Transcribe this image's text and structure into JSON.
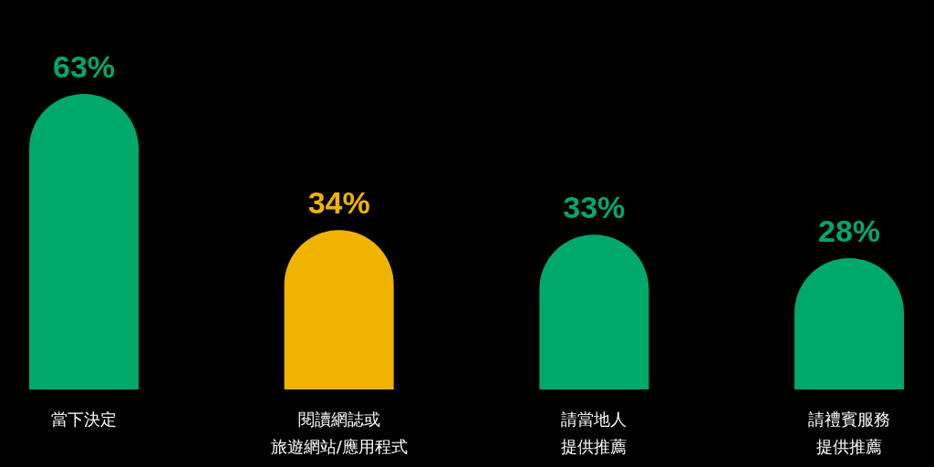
{
  "chart_data": {
    "type": "bar",
    "categories": [
      "當下決定",
      "閱讀網誌或旅遊網站/應用程式",
      "請當地人提供推薦",
      "請禮賓服務提供推薦"
    ],
    "values": [
      63,
      34,
      33,
      28
    ],
    "value_labels": [
      "63%",
      "34%",
      "33%",
      "28%"
    ],
    "colors": [
      "#00a86b",
      "#f0b400",
      "#00a86b",
      "#00a86b"
    ]
  }
}
